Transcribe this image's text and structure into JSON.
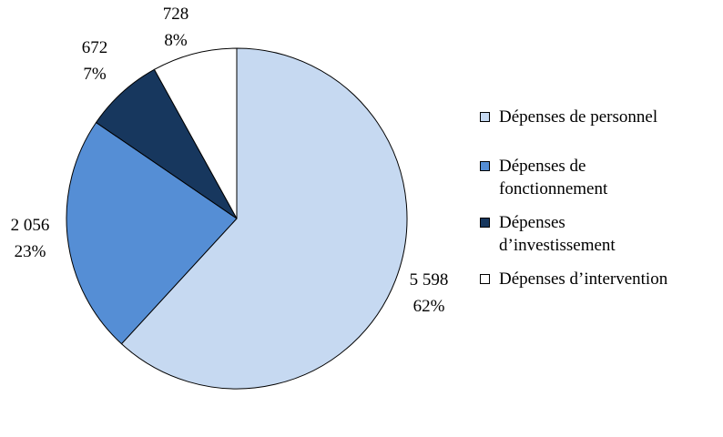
{
  "chart_data": {
    "type": "pie",
    "title": "",
    "slices": [
      {
        "label": "Dépenses de personnel",
        "value": 5598,
        "value_label": "5 598",
        "percent_label": "62%",
        "color": "#c6d9f1"
      },
      {
        "label": "Dépenses de fonctionnement",
        "value": 2056,
        "value_label": "2 056",
        "percent_label": "23%",
        "color": "#558ed5"
      },
      {
        "label": "Dépenses d’investissement",
        "value": 672,
        "value_label": "672",
        "percent_label": "7%",
        "color": "#17375e"
      },
      {
        "label": "Dépenses d’intervention",
        "value": 728,
        "value_label": "728",
        "percent_label": "8%",
        "color": "#ffffff"
      }
    ],
    "start_angle": "12 o'clock",
    "direction": "clockwise",
    "legend_position": "right",
    "legend_lines": [
      [
        "Dépenses de personnel"
      ],
      [
        "Dépenses de",
        "fonctionnement"
      ],
      [
        "Dépenses",
        "d’investissement"
      ],
      [
        "Dépenses d’intervention"
      ]
    ]
  }
}
